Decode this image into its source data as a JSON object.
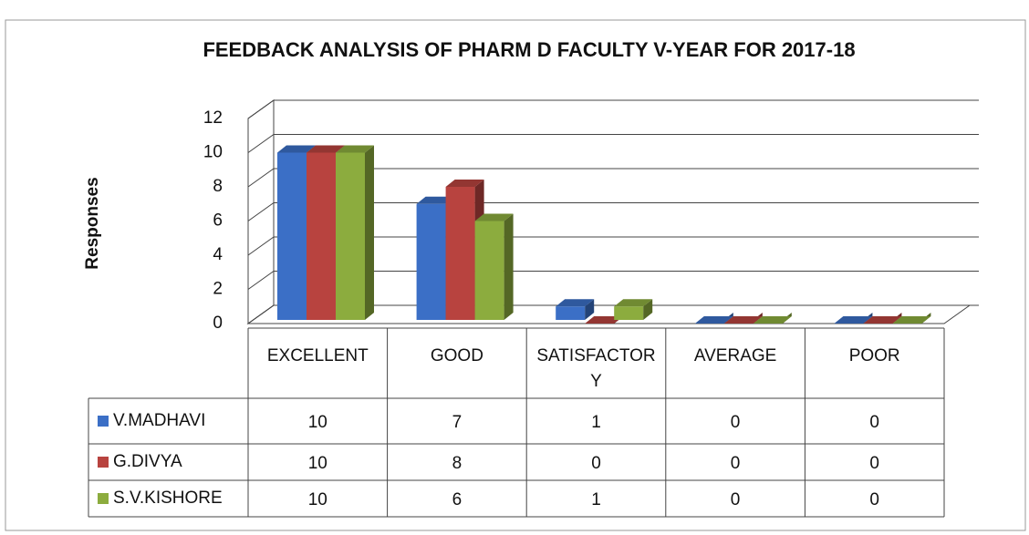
{
  "chart_data": {
    "type": "bar",
    "title": "FEEDBACK ANALYSIS OF PHARM D FACULTY V-YEAR FOR 2017-18",
    "y_label": "Responses",
    "categories": [
      "EXCELLENT",
      "GOOD",
      "SATISFACTORY",
      "AVERAGE",
      "POOR"
    ],
    "series": [
      {
        "name": "V.MADHAVI",
        "color": "#3b6fc6",
        "values": [
          10,
          7,
          1,
          0,
          0
        ]
      },
      {
        "name": "G.DIVYA",
        "color": "#b8433f",
        "values": [
          10,
          8,
          0,
          0,
          0
        ]
      },
      {
        "name": "S.V.KISHORE",
        "color": "#8cac3e",
        "values": [
          10,
          6,
          1,
          0,
          0
        ]
      }
    ],
    "ylim": [
      0,
      12
    ],
    "yticks": [
      0,
      2,
      4,
      6,
      8,
      10,
      12
    ],
    "grid": true
  }
}
